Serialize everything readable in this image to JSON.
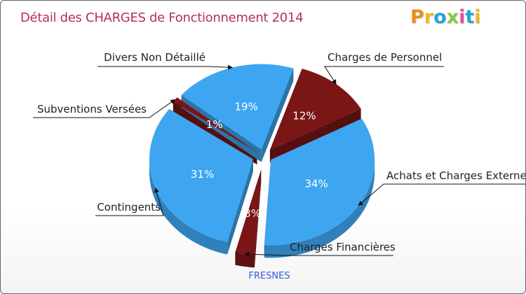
{
  "title": "Détail des CHARGES de Fonctionnement 2014",
  "logo": {
    "text": "Proxiti",
    "colors": [
      "#f08a1c",
      "#f2b81a",
      "#2aa4d6",
      "#8dc63f",
      "#e94f8a",
      "#2aa4d6",
      "#f2b81a"
    ]
  },
  "chart_data": {
    "type": "pie",
    "title": "Détail des CHARGES de Fonctionnement 2014",
    "subtitle": "FRESNES",
    "slices": [
      {
        "label": "Charges de Personnel",
        "percent_label": "12%",
        "value": 12,
        "color": "#7a1616"
      },
      {
        "label": "Achats et Charges Externes",
        "percent_label": "34%",
        "value": 34,
        "color": "#3ea6f0"
      },
      {
        "label": "Charges Financières",
        "percent_label": "3%",
        "value": 3,
        "color": "#7a1616"
      },
      {
        "label": "Contingents",
        "percent_label": "31%",
        "value": 31,
        "color": "#3ea6f0"
      },
      {
        "label": "Subventions Versées",
        "percent_label": "1%",
        "value": 1,
        "color": "#7a1616"
      },
      {
        "label": "Divers Non Détaillé",
        "percent_label": "19%",
        "value": 19,
        "color": "#3ea6f0"
      }
    ]
  }
}
